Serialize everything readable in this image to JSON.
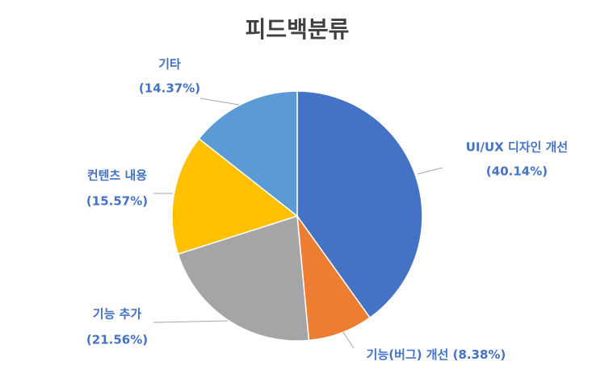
{
  "chart_data": {
    "type": "pie",
    "title": "피드백분류",
    "categories": [
      "UI/UX 디자인 개선",
      "기능(버그) 개선",
      "기능 추가",
      "컨텐츠 내용",
      "기타"
    ],
    "values": [
      40.14,
      8.38,
      21.56,
      15.57,
      14.37
    ],
    "value_labels": [
      "(40.14%)",
      "(8.38%)",
      "(21.56%)",
      "(15.57%)",
      "(14.37%)"
    ],
    "colors": [
      "#4472c4",
      "#ed7d31",
      "#a5a5a5",
      "#ffc000",
      "#5b9bd5"
    ]
  }
}
